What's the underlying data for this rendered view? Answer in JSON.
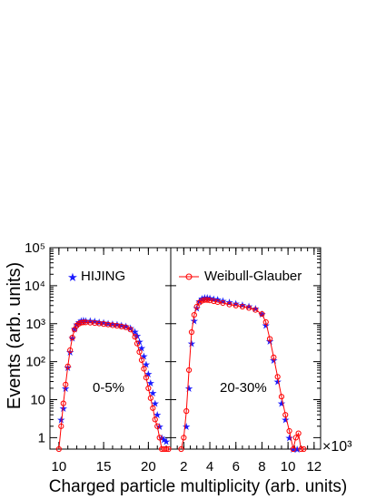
{
  "chart_data": {
    "type": "scatter",
    "ylabel": "Events (arb. units)",
    "xlabel": "Charged particle multiplicity (arb. units)",
    "x_multiplier": "×10³",
    "yscale": "log",
    "ylim": [
      0.5,
      100000
    ],
    "ytick_labels": [
      "1",
      "10",
      "10²",
      "10³",
      "10⁴",
      "10⁵"
    ],
    "legend": {
      "placement": "top",
      "entries": [
        {
          "label": "HIJING",
          "marker": "star",
          "color": "#1a1aff"
        },
        {
          "label": "Weibull-Glauber",
          "marker": "open-circle-line",
          "color": "#ff0000"
        }
      ]
    },
    "panels": [
      {
        "annotation": "0-5%",
        "xlim": [
          9.0,
          22.5
        ],
        "xtick_labels": [
          "10",
          "15",
          "20"
        ],
        "series": [
          {
            "name": "HIJING",
            "color": "#1a1aff",
            "x": [
              10.25,
              10.5,
              10.75,
              11.0,
              11.25,
              11.5,
              11.75,
              12.0,
              12.25,
              12.5,
              12.75,
              13.0,
              13.5,
              14.0,
              14.5,
              15.0,
              15.5,
              16.0,
              16.5,
              17.0,
              17.5,
              18.0,
              18.5,
              18.75,
              19.0,
              19.25,
              19.5,
              19.75,
              20.0,
              20.25,
              20.5,
              20.75,
              21.0,
              21.25,
              21.5,
              21.75,
              22.0
            ],
            "y": [
              3,
              6,
              20,
              70,
              180,
              420,
              730,
              950,
              1100,
              1180,
              1220,
              1200,
              1180,
              1150,
              1100,
              1060,
              1020,
              990,
              950,
              900,
              850,
              780,
              620,
              480,
              340,
              230,
              140,
              85,
              48,
              28,
              15,
              8,
              4,
              2,
              1,
              0.9,
              0.8
            ]
          },
          {
            "name": "Weibull-Glauber",
            "color": "#ff0000",
            "x": [
              10.0,
              10.25,
              10.5,
              10.75,
              11.0,
              11.25,
              11.5,
              11.75,
              12.0,
              12.25,
              12.5,
              12.75,
              13.0,
              13.5,
              14.0,
              14.5,
              15.0,
              15.5,
              16.0,
              16.5,
              17.0,
              17.5,
              18.0,
              18.5,
              18.75,
              19.0,
              19.25,
              19.5,
              19.75,
              20.0,
              20.25,
              20.5,
              20.75,
              21.0,
              21.25,
              21.5,
              21.75,
              22.0,
              22.25
            ],
            "y": [
              0.5,
              2,
              8,
              25,
              75,
              200,
              430,
              700,
              900,
              1000,
              1060,
              1080,
              1080,
              1060,
              1040,
              1010,
              980,
              950,
              910,
              880,
              840,
              800,
              700,
              450,
              300,
              180,
              110,
              65,
              38,
              20,
              11,
              6,
              3,
              2,
              1,
              0.5,
              0.5,
              0.5,
              0.5
            ]
          }
        ]
      },
      {
        "annotation": "20-30%",
        "xlim": [
          1.0,
          12.5
        ],
        "xtick_labels": [
          "2",
          "4",
          "6",
          "8",
          "10",
          "12"
        ],
        "series": [
          {
            "name": "HIJING",
            "color": "#1a1aff",
            "x": [
              2.2,
              2.4,
              2.6,
              2.8,
              3.0,
              3.2,
              3.4,
              3.6,
              3.8,
              4.0,
              4.3,
              4.6,
              5.0,
              5.5,
              6.0,
              6.5,
              7.0,
              7.5,
              8.0,
              8.3,
              8.6,
              8.9,
              9.2,
              9.5,
              9.8,
              10.1,
              10.4,
              10.7
            ],
            "y": [
              2,
              20,
              300,
              1200,
              2600,
              3900,
              4600,
              4800,
              4850,
              4700,
              4500,
              4300,
              4000,
              3700,
              3400,
              3100,
              2900,
              2500,
              1800,
              900,
              350,
              110,
              30,
              8,
              3,
              1,
              0.5,
              0.5
            ]
          },
          {
            "name": "Weibull-Glauber",
            "color": "#ff0000",
            "x": [
              1.8,
              2.0,
              2.2,
              2.4,
              2.6,
              2.8,
              3.0,
              3.2,
              3.4,
              3.6,
              3.8,
              4.0,
              4.3,
              4.6,
              5.0,
              5.5,
              6.0,
              6.5,
              7.0,
              7.5,
              8.0,
              8.3,
              8.6,
              8.9,
              9.2,
              9.5,
              9.8,
              10.1,
              10.4,
              10.6,
              10.8,
              11.0,
              11.2
            ],
            "y": [
              0.5,
              1,
              5,
              60,
              600,
              1700,
              2800,
              3600,
              4000,
              4200,
              4200,
              4100,
              3900,
              3700,
              3500,
              3200,
              3000,
              2800,
              2600,
              2300,
              1800,
              1100,
              400,
              130,
              40,
              12,
              4,
              1.5,
              0.5,
              1,
              1.3,
              0.5,
              0.5
            ]
          }
        ]
      }
    ]
  }
}
